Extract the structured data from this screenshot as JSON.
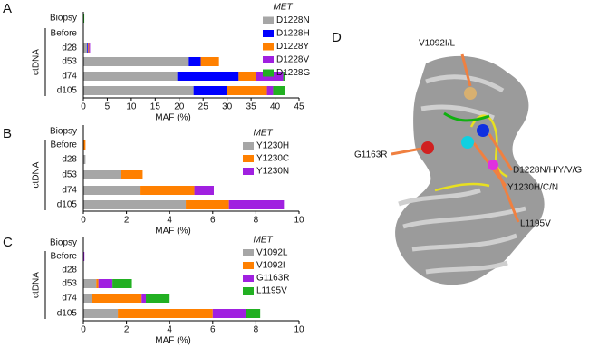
{
  "chart_data": [
    {
      "type": "stacked_hbar",
      "panel": "A",
      "group_label": "ctDNA",
      "legend_title": "MET",
      "xlabel": "MAF (%)",
      "categories": [
        "Biopsy",
        "Before",
        "d28",
        "d53",
        "d74",
        "d105"
      ],
      "xlim": [
        0,
        45
      ],
      "xticks": [
        0,
        5,
        10,
        15,
        20,
        25,
        30,
        35,
        40,
        45
      ],
      "series": [
        {
          "name": "D1228N",
          "color": "#a6a6a6",
          "values": [
            0,
            0,
            0.8,
            22,
            19.6,
            23
          ]
        },
        {
          "name": "D1228H",
          "color": "#0000ff",
          "values": [
            0,
            0,
            0.2,
            2.5,
            12.8,
            6.9
          ]
        },
        {
          "name": "D1228Y",
          "color": "#ff8000",
          "values": [
            0,
            0,
            0.2,
            3.8,
            3.6,
            8.4
          ]
        },
        {
          "name": "D1228V",
          "color": "#a020e0",
          "values": [
            0,
            0,
            0.2,
            0,
            5.7,
            1.3
          ]
        },
        {
          "name": "D1228G",
          "color": "#22b022",
          "values": [
            0.2,
            0,
            0,
            0,
            0.4,
            2.5
          ]
        }
      ]
    },
    {
      "type": "stacked_hbar",
      "panel": "B",
      "group_label": "ctDNA",
      "legend_title": "MET",
      "xlabel": "MAF (%)",
      "categories": [
        "Biopsy",
        "Before",
        "d28",
        "d53",
        "d74",
        "d105"
      ],
      "xlim": [
        0,
        10
      ],
      "xticks": [
        0,
        2,
        4,
        6,
        8,
        10
      ],
      "series": [
        {
          "name": "Y1230H",
          "color": "#a6a6a6",
          "values": [
            0,
            0,
            0.1,
            1.75,
            2.65,
            4.75
          ]
        },
        {
          "name": "Y1230C",
          "color": "#ff8000",
          "values": [
            0,
            0.1,
            0,
            1.0,
            2.5,
            2.0
          ]
        },
        {
          "name": "Y1230N",
          "color": "#a020e0",
          "values": [
            0,
            0,
            0,
            0,
            0.9,
            2.55
          ]
        }
      ]
    },
    {
      "type": "stacked_hbar",
      "panel": "C",
      "group_label": "ctDNA",
      "legend_title": "MET",
      "xlabel": "MAF (%)",
      "categories": [
        "Biopsy",
        "Before",
        "d28",
        "d53",
        "d74",
        "d105"
      ],
      "xlim": [
        0,
        10
      ],
      "xticks": [
        0,
        2,
        4,
        6,
        8,
        10
      ],
      "series": [
        {
          "name": "V1092L",
          "color": "#a6a6a6",
          "values": [
            0,
            0,
            0,
            0.6,
            0.4,
            1.6
          ]
        },
        {
          "name": "V1092I",
          "color": "#ff8000",
          "values": [
            0,
            0,
            0,
            0.1,
            2.3,
            4.4
          ]
        },
        {
          "name": "G1163R",
          "color": "#a020e0",
          "values": [
            0,
            0.05,
            0,
            0.65,
            0.2,
            1.55
          ]
        },
        {
          "name": "L1195V",
          "color": "#22b022",
          "values": [
            0,
            0,
            0,
            0.9,
            1.1,
            0.65
          ]
        }
      ]
    }
  ],
  "structure": {
    "panel": "D",
    "labels": [
      "V1092I/L",
      "D1228N/H/Y/V/G",
      "Y1230H/C/N",
      "G1163R",
      "L1195V"
    ]
  }
}
